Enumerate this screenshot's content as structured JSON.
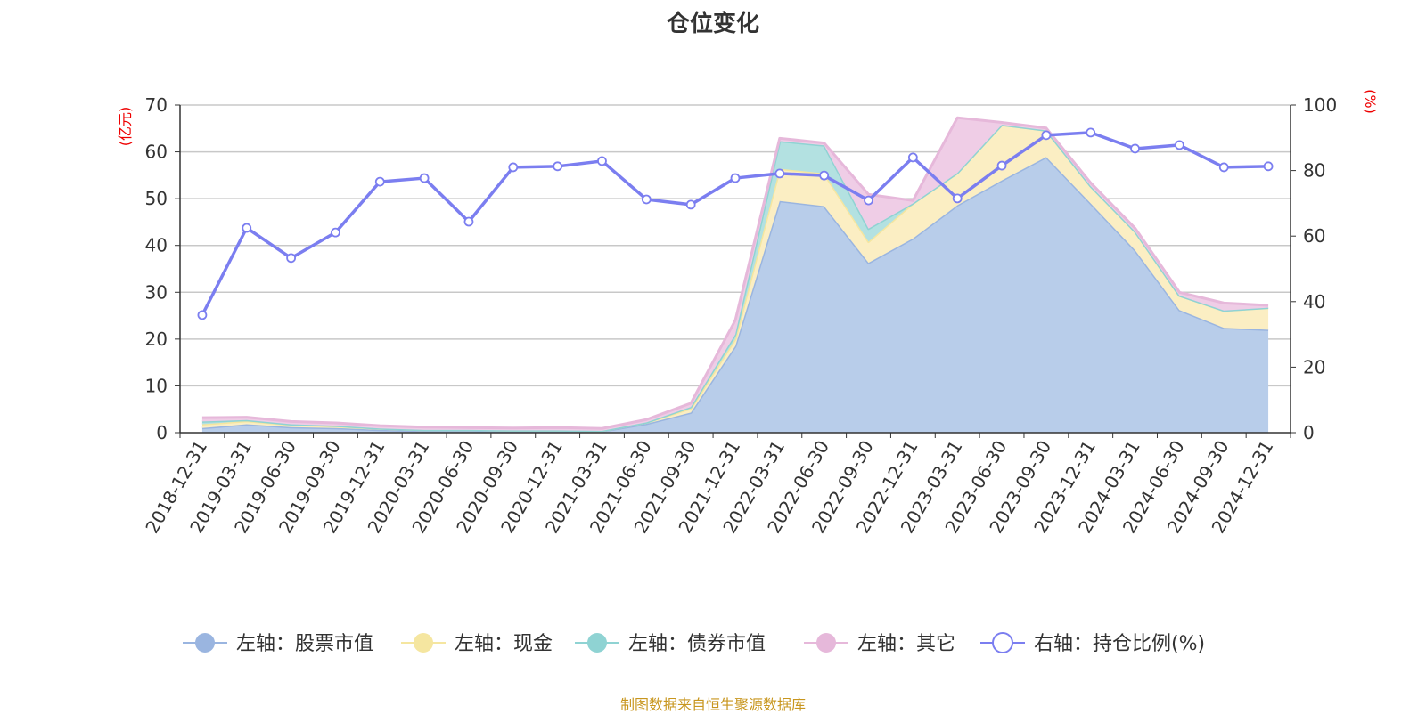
{
  "chart_data": {
    "type": "area",
    "title": "仓位变化",
    "left_axis_label": "(亿元)",
    "right_axis_label": "(%)",
    "left_ylim": [
      0,
      70
    ],
    "left_ticks": [
      0,
      10,
      20,
      30,
      40,
      50,
      60,
      70
    ],
    "right_ylim": [
      0,
      100
    ],
    "right_ticks": [
      0,
      20,
      40,
      60,
      80,
      100
    ],
    "grid": true,
    "legend_position": "bottom",
    "categories": [
      "2018-12-31",
      "2019-03-31",
      "2019-06-30",
      "2019-09-30",
      "2019-12-31",
      "2020-03-31",
      "2020-06-30",
      "2020-09-30",
      "2020-12-31",
      "2021-03-31",
      "2021-06-30",
      "2021-09-30",
      "2021-12-31",
      "2022-03-31",
      "2022-06-30",
      "2022-09-30",
      "2022-12-31",
      "2023-03-31",
      "2023-06-30",
      "2023-09-30",
      "2023-12-31",
      "2024-03-31",
      "2024-06-30",
      "2024-09-30",
      "2024-12-31"
    ],
    "series": [
      {
        "name": "左轴：股票市值",
        "axis": "left",
        "stacked": true,
        "color": "#9ab5e0",
        "fill": "#b8cdea",
        "values": [
          1.0,
          1.8,
          1.2,
          1.0,
          0.6,
          0.4,
          0.4,
          0.3,
          0.3,
          0.3,
          1.9,
          4.3,
          18.5,
          49.5,
          48.4,
          36.3,
          41.5,
          48.6,
          53.9,
          58.9,
          49.0,
          39.0,
          26.2,
          22.4,
          22.0
        ]
      },
      {
        "name": "左轴：现金",
        "axis": "left",
        "stacked": true,
        "color": "#f5e6a0",
        "fill": "#fbeec3",
        "values": [
          0.8,
          0.7,
          0.5,
          0.4,
          0.3,
          0.2,
          0.2,
          0.2,
          0.2,
          0.1,
          0.3,
          0.9,
          1.5,
          6.9,
          7.0,
          4.5,
          7.5,
          6.9,
          11.9,
          5.7,
          3.7,
          4.0,
          3.1,
          3.7,
          4.7
        ]
      },
      {
        "name": "左轴：债券市值",
        "axis": "left",
        "stacked": true,
        "color": "#8fd3d3",
        "fill": "#b3e1e1",
        "values": [
          0.6,
          0.2,
          0.1,
          0.1,
          0,
          0,
          0,
          0,
          0,
          0,
          0,
          0.3,
          1.0,
          5.9,
          6.0,
          2.8,
          0,
          0,
          0,
          0,
          0,
          0,
          0,
          0,
          0
        ]
      },
      {
        "name": "左轴：其它",
        "axis": "left",
        "stacked": true,
        "color": "#e6b8da",
        "fill": "#efcde6",
        "values": [
          0.8,
          0.6,
          0.6,
          0.6,
          0.6,
          0.6,
          0.5,
          0.5,
          0.6,
          0.5,
          0.6,
          0.8,
          3.0,
          0.6,
          0.5,
          7.3,
          0.6,
          11.8,
          0.5,
          0.5,
          0.7,
          0.7,
          0.7,
          1.6,
          0.5
        ]
      },
      {
        "name": "右轴：持仓比例(%)",
        "axis": "right",
        "stacked": false,
        "color": "#7b7ef0",
        "values": [
          35.9,
          62.5,
          53.3,
          61.1,
          76.6,
          77.7,
          64.4,
          81.0,
          81.3,
          82.9,
          71.2,
          69.6,
          77.7,
          79.1,
          78.5,
          70.9,
          84.0,
          71.5,
          81.5,
          90.8,
          91.6,
          86.7,
          87.8,
          81.0,
          81.3
        ]
      }
    ]
  },
  "footer": "制图数据来自恒生聚源数据库"
}
